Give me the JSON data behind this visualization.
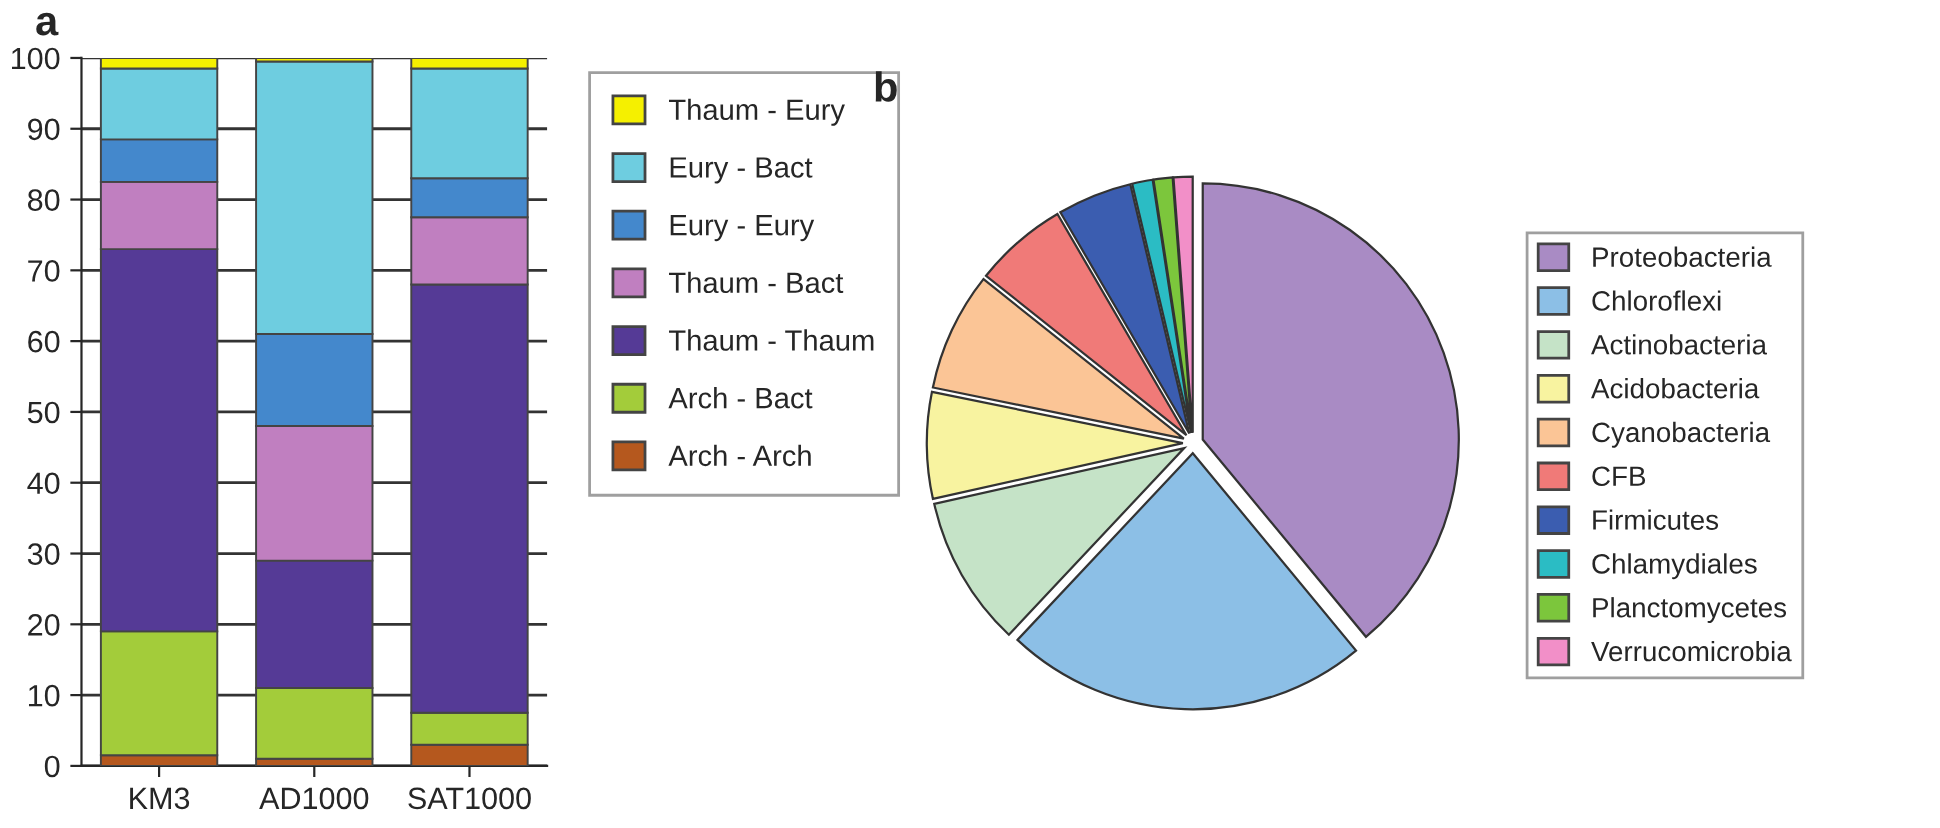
{
  "chart_data": [
    {
      "type": "bar",
      "title": "a",
      "stacked": true,
      "categories": [
        "KM3",
        "AD1000",
        "SAT1000"
      ],
      "series": [
        {
          "name": "Arch - Arch",
          "color": "#b5581e",
          "values": [
            1.5,
            1,
            3
          ]
        },
        {
          "name": "Arch - Bact",
          "color": "#a3cc3a",
          "values": [
            17.5,
            10,
            4.5
          ]
        },
        {
          "name": "Thaum - Thaum",
          "color": "#553a96",
          "values": [
            54,
            18,
            60.5
          ]
        },
        {
          "name": "Thaum - Bact",
          "color": "#c07fc0",
          "values": [
            9.5,
            19,
            9.5
          ]
        },
        {
          "name": "Eury - Eury",
          "color": "#4488cc",
          "values": [
            6,
            13,
            5.5
          ]
        },
        {
          "name": "Eury - Bact",
          "color": "#6ecde0",
          "values": [
            10,
            38.5,
            15.5
          ]
        },
        {
          "name": "Thaum - Eury",
          "color": "#f5f000",
          "values": [
            1.5,
            0.5,
            1.5
          ]
        }
      ],
      "ylim": [
        0,
        100
      ],
      "yticks": [
        0,
        10,
        20,
        30,
        40,
        50,
        60,
        70,
        80,
        90,
        100
      ],
      "grid": "y",
      "legend": "right"
    },
    {
      "type": "pie",
      "title": "b",
      "categories": [
        "Proteobacteria",
        "Chloroflexi",
        "Actinobacteria",
        "Acidobacteria",
        "Cyanobacteria",
        "CFB",
        "Firmicutes",
        "Chlamydiales",
        "Planctomycetes",
        "Verrucomicrobia"
      ],
      "values": [
        39,
        23,
        9.5,
        6.7,
        7.5,
        5.9,
        4.7,
        1.3,
        1.2,
        1.2
      ],
      "colors": [
        "#a98bc4",
        "#8cbfe6",
        "#c5e3c7",
        "#f8f3a0",
        "#fbc596",
        "#f07a78",
        "#3b5db0",
        "#2bbcc4",
        "#7cc63c",
        "#f28fc8"
      ],
      "legend": "right"
    }
  ]
}
